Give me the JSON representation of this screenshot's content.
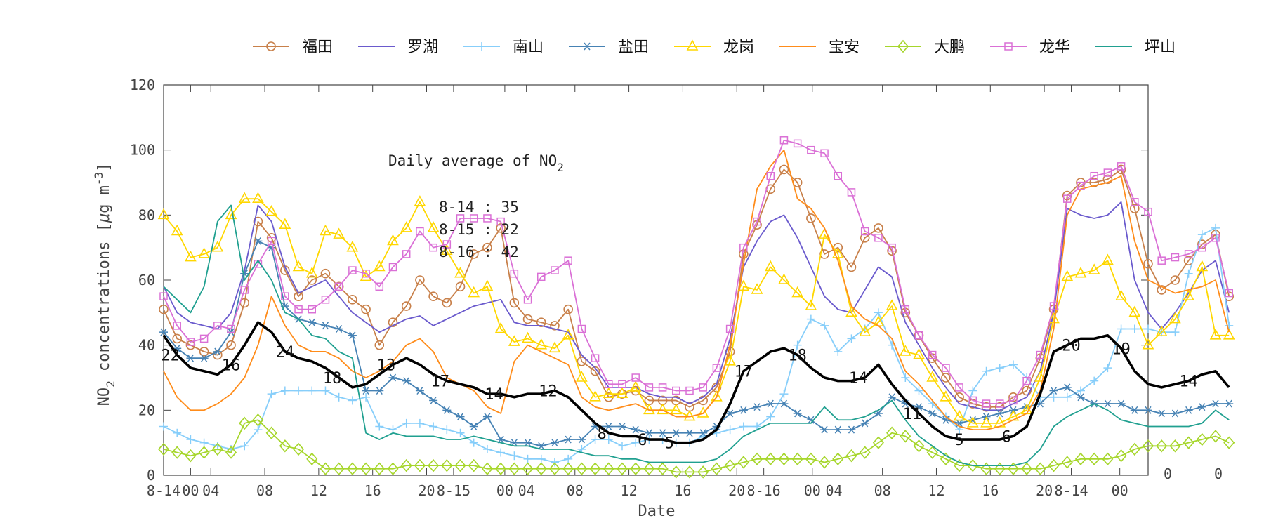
{
  "chart_data": {
    "type": "line",
    "xlabel": "Date",
    "ylabel_main": "NO",
    "ylabel_sub": "2",
    "ylabel_rest": " concentrations [",
    "ylabel_mu": "μ",
    "ylabel_unit": "g m",
    "ylabel_sup": "-3",
    "ylabel_close": "]",
    "ylim": [
      0,
      120
    ],
    "yticks": [
      0,
      20,
      40,
      60,
      80,
      100,
      120
    ],
    "xlim": [
      0,
      73
    ],
    "xticks": [
      {
        "x": 0,
        "label": "8-14"
      },
      {
        "x": 2,
        "label": "00"
      },
      {
        "x": 3.5,
        "label": "04"
      },
      {
        "x": 7.5,
        "label": "08"
      },
      {
        "x": 11.5,
        "label": "12"
      },
      {
        "x": 15.5,
        "label": "16"
      },
      {
        "x": 19.5,
        "label": "20"
      },
      {
        "x": 21.5,
        "label": "8-15"
      },
      {
        "x": 25.3,
        "label": "00"
      },
      {
        "x": 26.9,
        "label": "04"
      },
      {
        "x": 30.5,
        "label": "08"
      },
      {
        "x": 34.5,
        "label": "12"
      },
      {
        "x": 38.5,
        "label": "16"
      },
      {
        "x": 42.5,
        "label": "20"
      },
      {
        "x": 44.5,
        "label": "8-16"
      },
      {
        "x": 48.1,
        "label": "00"
      },
      {
        "x": 49.7,
        "label": "04"
      },
      {
        "x": 53.3,
        "label": "08"
      },
      {
        "x": 57.3,
        "label": "12"
      },
      {
        "x": 61.3,
        "label": "16"
      },
      {
        "x": 65.3,
        "label": "20"
      },
      {
        "x": 67.3,
        "label": "8-14"
      },
      {
        "x": 70.9,
        "label": "00"
      }
    ],
    "overflow_ticks": [
      "0",
      "0",
      "0"
    ],
    "annotation": {
      "title_main": "Daily average of NO",
      "title_sub": "2",
      "lines": [
        "8-14 : 35",
        "8-15 : 22",
        "8-16 : 42"
      ]
    },
    "series": [
      {
        "name": "福田",
        "color": "#c8804a",
        "marker": "circle",
        "values": [
          51,
          42,
          40,
          38,
          37,
          40,
          53,
          78,
          73,
          63,
          55,
          60,
          62,
          58,
          54,
          51,
          40,
          47,
          52,
          60,
          55,
          53,
          58,
          68,
          70,
          76,
          53,
          48,
          47,
          46,
          51,
          35,
          32,
          24,
          25,
          26,
          23,
          23,
          23,
          21,
          23,
          27,
          38,
          68,
          77,
          88,
          94,
          90,
          79,
          68,
          70,
          64,
          73,
          76,
          69,
          50,
          43,
          36,
          30,
          24,
          22,
          21,
          21,
          24,
          26,
          36,
          51,
          86,
          90,
          90,
          91,
          94,
          82,
          65,
          57,
          60,
          66,
          71,
          74,
          55
        ]
      },
      {
        "name": "罗湖",
        "color": "#6a5acd",
        "marker": "none",
        "values": [
          58,
          50,
          47,
          46,
          45,
          50,
          63,
          83,
          78,
          64,
          56,
          58,
          60,
          55,
          50,
          47,
          44,
          46,
          48,
          49,
          46,
          48,
          50,
          52,
          53,
          54,
          47,
          46,
          46,
          45,
          44,
          37,
          33,
          27,
          27,
          27,
          25,
          24,
          24,
          22,
          24,
          28,
          42,
          64,
          72,
          78,
          80,
          73,
          64,
          55,
          51,
          50,
          57,
          64,
          61,
          47,
          40,
          33,
          27,
          22,
          21,
          20,
          20,
          22,
          24,
          32,
          50,
          82,
          80,
          79,
          80,
          84,
          60,
          50,
          45,
          50,
          56,
          63,
          66,
          50
        ]
      },
      {
        "name": "南山",
        "color": "#87cefa",
        "marker": "plus",
        "values": [
          15,
          13,
          11,
          10,
          9,
          8,
          9,
          14,
          25,
          26,
          26,
          26,
          26,
          24,
          23,
          24,
          15,
          14,
          16,
          16,
          15,
          14,
          13,
          10,
          8,
          7,
          6,
          5,
          5,
          4,
          5,
          8,
          11,
          11,
          9,
          10,
          11,
          11,
          10,
          10,
          12,
          13,
          14,
          15,
          15,
          18,
          25,
          40,
          48,
          46,
          38,
          42,
          45,
          50,
          40,
          30,
          26,
          22,
          18,
          14,
          26,
          32,
          33,
          34,
          30,
          24,
          24,
          24,
          26,
          29,
          33,
          45,
          45,
          45,
          44,
          44,
          62,
          74,
          76,
          46
        ]
      },
      {
        "name": "盐田",
        "color": "#4682b4",
        "marker": "asterisk",
        "values": [
          44,
          39,
          36,
          36,
          38,
          44,
          62,
          72,
          70,
          52,
          48,
          47,
          46,
          45,
          43,
          26,
          26,
          30,
          29,
          26,
          23,
          20,
          18,
          15,
          18,
          11,
          10,
          10,
          9,
          10,
          11,
          11,
          15,
          15,
          15,
          14,
          13,
          13,
          13,
          13,
          13,
          15,
          19,
          20,
          21,
          22,
          22,
          19,
          17,
          14,
          14,
          14,
          16,
          19,
          24,
          22,
          21,
          19,
          17,
          16,
          17,
          18,
          19,
          20,
          21,
          22,
          26,
          27,
          24,
          22,
          22,
          22,
          20,
          20,
          19,
          19,
          20,
          21,
          22,
          22
        ]
      },
      {
        "name": "龙岗",
        "color": "#ffd700",
        "marker": "triangle",
        "values": [
          80,
          75,
          67,
          68,
          70,
          80,
          85,
          85,
          81,
          77,
          64,
          62,
          75,
          74,
          70,
          61,
          64,
          72,
          76,
          84,
          76,
          69,
          62,
          56,
          58,
          45,
          41,
          42,
          40,
          39,
          43,
          30,
          24,
          25,
          25,
          27,
          20,
          20,
          20,
          18,
          19,
          24,
          35,
          58,
          57,
          64,
          60,
          56,
          52,
          74,
          68,
          50,
          44,
          47,
          52,
          38,
          37,
          30,
          24,
          18,
          16,
          16,
          16,
          18,
          20,
          30,
          48,
          61,
          62,
          63,
          66,
          55,
          50,
          40,
          44,
          48,
          55,
          64,
          43,
          43
        ]
      },
      {
        "name": "宝安",
        "color": "#ff8c1a",
        "marker": "none",
        "values": [
          32,
          24,
          20,
          20,
          22,
          25,
          30,
          40,
          55,
          46,
          40,
          38,
          38,
          36,
          32,
          30,
          32,
          35,
          40,
          42,
          38,
          30,
          28,
          26,
          21,
          19,
          35,
          40,
          38,
          36,
          34,
          24,
          21,
          20,
          21,
          22,
          20,
          20,
          18,
          18,
          19,
          24,
          40,
          65,
          88,
          95,
          100,
          85,
          82,
          76,
          66,
          52,
          48,
          46,
          42,
          32,
          28,
          23,
          18,
          15,
          14,
          14,
          15,
          17,
          19,
          26,
          45,
          80,
          88,
          89,
          90,
          92,
          72,
          60,
          58,
          56,
          57,
          58,
          60,
          44
        ]
      },
      {
        "name": "大鹏",
        "color": "#a6d62b",
        "marker": "diamond",
        "values": [
          8,
          7,
          6,
          7,
          8,
          7,
          16,
          17,
          13,
          9,
          8,
          5,
          2,
          2,
          2,
          2,
          2,
          2,
          3,
          3,
          3,
          3,
          3,
          3,
          2,
          2,
          2,
          2,
          2,
          2,
          2,
          2,
          2,
          2,
          2,
          2,
          2,
          2,
          1,
          1,
          1,
          2,
          3,
          4,
          5,
          5,
          5,
          5,
          5,
          4,
          5,
          6,
          7,
          10,
          13,
          12,
          9,
          7,
          5,
          3,
          3,
          2,
          2,
          2,
          2,
          2,
          3,
          4,
          5,
          5,
          5,
          6,
          8,
          9,
          9,
          9,
          10,
          11,
          12,
          10
        ]
      },
      {
        "name": "龙华",
        "color": "#da70d6",
        "marker": "square",
        "values": [
          55,
          46,
          41,
          42,
          46,
          45,
          57,
          65,
          72,
          55,
          51,
          51,
          54,
          58,
          63,
          62,
          58,
          64,
          68,
          75,
          70,
          71,
          79,
          79,
          79,
          78,
          62,
          54,
          61,
          63,
          66,
          45,
          36,
          28,
          28,
          30,
          27,
          27,
          26,
          26,
          27,
          33,
          45,
          70,
          78,
          92,
          103,
          102,
          100,
          99,
          92,
          87,
          75,
          73,
          70,
          51,
          43,
          37,
          33,
          27,
          23,
          22,
          22,
          23,
          29,
          37,
          52,
          85,
          89,
          92,
          93,
          95,
          84,
          81,
          66,
          67,
          68,
          70,
          73,
          56
        ]
      },
      {
        "name": "坪山",
        "color": "#20a090",
        "marker": "none",
        "values": [
          58,
          54,
          50,
          58,
          78,
          83,
          60,
          66,
          60,
          50,
          48,
          43,
          42,
          38,
          36,
          13,
          11,
          13,
          12,
          12,
          12,
          11,
          11,
          12,
          11,
          10,
          9,
          9,
          8,
          8,
          8,
          7,
          6,
          6,
          5,
          5,
          4,
          4,
          4,
          4,
          4,
          5,
          8,
          12,
          14,
          16,
          16,
          16,
          16,
          21,
          17,
          17,
          18,
          20,
          23,
          17,
          12,
          9,
          6,
          4,
          3,
          3,
          3,
          3,
          4,
          8,
          15,
          18,
          20,
          22,
          20,
          17,
          16,
          15,
          15,
          15,
          15,
          16,
          20,
          17
        ]
      }
    ],
    "average": {
      "color": "#000000",
      "values": [
        43,
        37,
        33,
        32,
        31,
        34,
        40,
        47,
        44,
        38,
        36,
        35,
        33,
        30,
        27,
        28,
        31,
        34,
        36,
        34,
        31,
        29,
        28,
        27,
        25,
        25,
        24,
        25,
        25,
        26,
        24,
        20,
        16,
        13,
        12,
        12,
        11,
        11,
        10,
        10,
        11,
        14,
        22,
        32,
        35,
        38,
        39,
        37,
        33,
        30,
        29,
        29,
        30,
        34,
        28,
        23,
        19,
        15,
        12,
        11,
        11,
        11,
        11,
        12,
        15,
        25,
        38,
        40,
        42,
        42,
        43,
        39,
        32,
        28,
        27,
        28,
        29,
        31,
        32,
        27
      ],
      "labels": [
        {
          "x": 0.5,
          "text": "22"
        },
        {
          "x": 5,
          "text": "16"
        },
        {
          "x": 9,
          "text": "24"
        },
        {
          "x": 12.5,
          "text": "18"
        },
        {
          "x": 16.5,
          "text": "13"
        },
        {
          "x": 20.5,
          "text": "17"
        },
        {
          "x": 24.5,
          "text": "14"
        },
        {
          "x": 28.5,
          "text": "12"
        },
        {
          "x": 32.5,
          "text": "8"
        },
        {
          "x": 35.5,
          "text": "6"
        },
        {
          "x": 37.5,
          "text": "5"
        },
        {
          "x": 43,
          "text": "17"
        },
        {
          "x": 47,
          "text": "18"
        },
        {
          "x": 51.5,
          "text": "14"
        },
        {
          "x": 55.5,
          "text": "11"
        },
        {
          "x": 59,
          "text": "5"
        },
        {
          "x": 62.5,
          "text": "6"
        },
        {
          "x": 67.3,
          "text": "20"
        },
        {
          "x": 71,
          "text": "19"
        },
        {
          "x": 76,
          "text": "14"
        }
      ]
    }
  }
}
